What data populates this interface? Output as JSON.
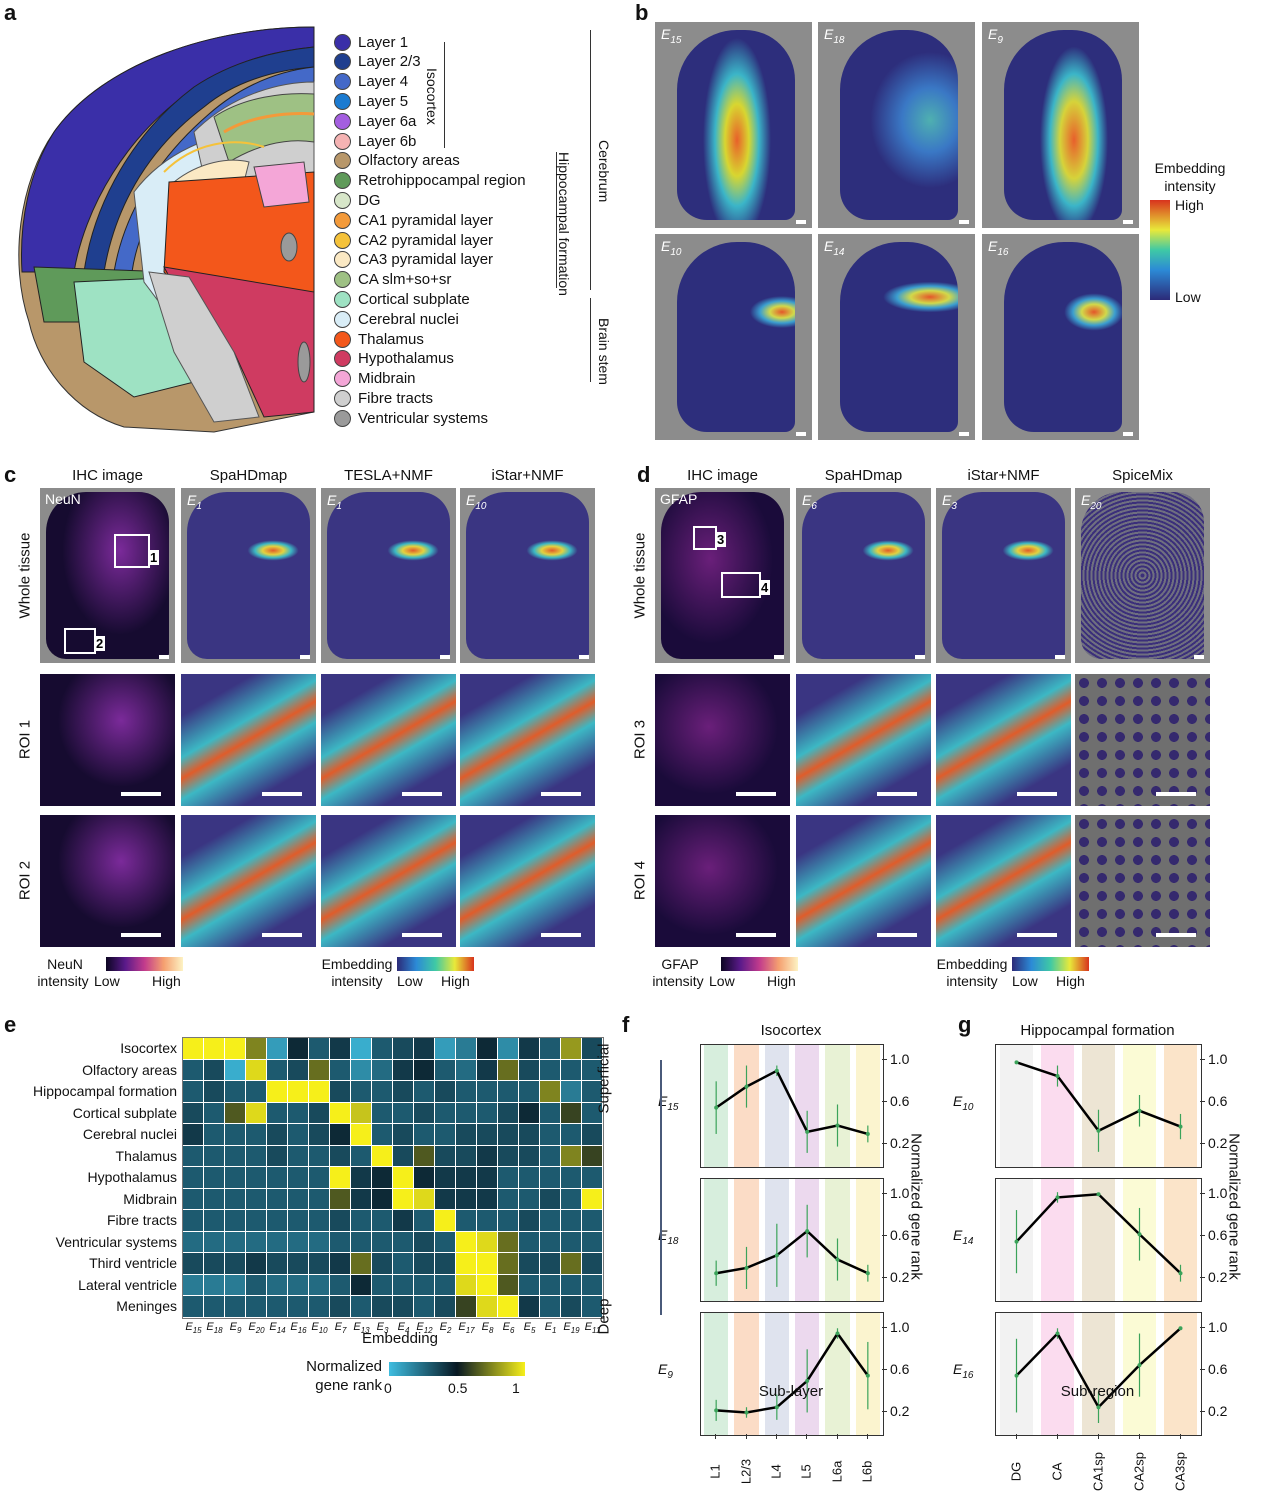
{
  "panel_labels": {
    "a": "a",
    "b": "b",
    "c": "c",
    "d": "d",
    "e": "e",
    "f": "f",
    "g": "g"
  },
  "panel_a": {
    "legend": [
      {
        "label": "Layer 1",
        "color": "#3a2fa8"
      },
      {
        "label": "Layer 2/3",
        "color": "#1f3f8f"
      },
      {
        "label": "Layer 4",
        "color": "#4469c8"
      },
      {
        "label": "Layer 5",
        "color": "#1b7bd1"
      },
      {
        "label": "Layer 6a",
        "color": "#a45ee0"
      },
      {
        "label": "Layer 6b",
        "color": "#f5b3b3"
      },
      {
        "label": "Olfactory areas",
        "color": "#b8976a"
      },
      {
        "label": "Retrohippocampal region",
        "color": "#5f9a5a"
      },
      {
        "label": "DG",
        "color": "#d7e6c9"
      },
      {
        "label": "CA1 pyramidal layer",
        "color": "#f39a3a"
      },
      {
        "label": "CA2 pyramidal layer",
        "color": "#f5c23a"
      },
      {
        "label": "CA3 pyramidal layer",
        "color": "#fbe9c4"
      },
      {
        "label": "CA slm+so+sr",
        "color": "#9ec184"
      },
      {
        "label": "Cortical subplate",
        "color": "#9ee2c3"
      },
      {
        "label": "Cerebral nuclei",
        "color": "#d9edf7"
      },
      {
        "label": "Thalamus",
        "color": "#f3571b"
      },
      {
        "label": "Hypothalamus",
        "color": "#cf3b61"
      },
      {
        "label": "Midbrain",
        "color": "#f4a6d7"
      },
      {
        "label": "Fibre tracts",
        "color": "#cfcfcf"
      },
      {
        "label": "Ventricular systems",
        "color": "#9a9a9a"
      }
    ],
    "brackets": {
      "isocortex": "Isocortex",
      "hippocampal": "Hippocampal formation",
      "cerebrum": "Cerebrum",
      "brainstem": "Brain stem"
    }
  },
  "panel_b": {
    "tiles": [
      {
        "name": "E",
        "sub": "15"
      },
      {
        "name": "E",
        "sub": "18"
      },
      {
        "name": "E",
        "sub": "9"
      },
      {
        "name": "E",
        "sub": "10"
      },
      {
        "name": "E",
        "sub": "14"
      },
      {
        "name": "E",
        "sub": "16"
      }
    ],
    "colorbar": {
      "title1": "Embedding",
      "title2": "intensity",
      "high": "High",
      "low": "Low"
    }
  },
  "panel_c": {
    "cols": [
      "IHC image",
      "SpaHDmap",
      "TESLA+NMF",
      "iStar+NMF"
    ],
    "rows": [
      "Whole tissue",
      "ROI 1",
      "ROI 2"
    ],
    "marker": "NeuN",
    "emb": [
      {
        "name": "E",
        "sub": "1"
      },
      {
        "name": "E",
        "sub": "1"
      },
      {
        "name": "E",
        "sub": "10"
      }
    ],
    "roi": [
      "1",
      "2"
    ],
    "cbar1": {
      "title1": "NeuN",
      "title2": "intensity",
      "low": "Low",
      "high": "High"
    },
    "cbar2": {
      "title1": "Embedding",
      "title2": "intensity",
      "low": "Low",
      "high": "High"
    }
  },
  "panel_d": {
    "cols": [
      "IHC image",
      "SpaHDmap",
      "iStar+NMF",
      "SpiceMix"
    ],
    "rows": [
      "Whole tissue",
      "ROI 3",
      "ROI 4"
    ],
    "marker": "GFAP",
    "emb": [
      {
        "name": "E",
        "sub": "6"
      },
      {
        "name": "E",
        "sub": "3"
      },
      {
        "name": "E",
        "sub": "20"
      }
    ],
    "roi": [
      "3",
      "4"
    ],
    "cbar1": {
      "title1": "GFAP",
      "title2": "intensity",
      "low": "Low",
      "high": "High"
    },
    "cbar2": {
      "title1": "Embedding",
      "title2": "intensity",
      "low": "Low",
      "high": "High"
    }
  },
  "chart_data": [
    {
      "type": "heatmap",
      "xlabel": "Embedding",
      "rows": [
        "Isocortex",
        "Olfactory areas",
        "Hippocampal formation",
        "Cortical subplate",
        "Cerebral nuclei",
        "Thalamus",
        "Hypothalamus",
        "Midbrain",
        "Fibre tracts",
        "Ventricular systems",
        "Third ventricle",
        "Lateral ventricle",
        "Meninges"
      ],
      "cols": [
        "15",
        "18",
        "9",
        "20",
        "14",
        "16",
        "10",
        "7",
        "13",
        "3",
        "4",
        "12",
        "2",
        "17",
        "8",
        "6",
        "5",
        "1",
        "19",
        "11"
      ],
      "col_prefix": "E",
      "values": [
        [
          1.0,
          1.0,
          1.0,
          0.75,
          0.1,
          0.45,
          0.3,
          0.4,
          0.05,
          0.3,
          0.35,
          0.4,
          0.1,
          0.2,
          0.45,
          0.15,
          0.4,
          0.3,
          0.8,
          0.35
        ],
        [
          0.3,
          0.35,
          0.05,
          0.95,
          0.3,
          0.35,
          0.7,
          0.3,
          0.15,
          0.25,
          0.4,
          0.45,
          0.3,
          0.25,
          0.4,
          0.7,
          0.35,
          0.3,
          0.3,
          0.3
        ],
        [
          0.3,
          0.35,
          0.3,
          0.3,
          1.0,
          1.0,
          1.0,
          0.35,
          0.3,
          0.3,
          0.35,
          0.3,
          0.35,
          0.3,
          0.3,
          0.3,
          0.3,
          0.75,
          0.2,
          0.3
        ],
        [
          0.35,
          0.3,
          0.65,
          0.95,
          0.3,
          0.3,
          0.35,
          1.0,
          0.9,
          0.3,
          0.3,
          0.35,
          0.3,
          0.3,
          0.3,
          0.35,
          0.45,
          0.3,
          0.6,
          0.3
        ],
        [
          0.4,
          0.3,
          0.3,
          0.3,
          0.35,
          0.3,
          0.35,
          0.45,
          1.0,
          0.3,
          0.35,
          0.3,
          0.3,
          0.35,
          0.35,
          0.35,
          0.35,
          0.3,
          0.3,
          0.35
        ],
        [
          0.3,
          0.3,
          0.3,
          0.3,
          0.35,
          0.3,
          0.3,
          0.35,
          0.3,
          1.0,
          0.35,
          0.65,
          0.35,
          0.35,
          0.4,
          0.35,
          0.35,
          0.3,
          0.75,
          0.6
        ],
        [
          0.3,
          0.3,
          0.3,
          0.3,
          0.3,
          0.3,
          0.3,
          1.0,
          0.4,
          0.45,
          1.0,
          0.45,
          0.4,
          0.4,
          0.4,
          0.3,
          0.3,
          0.3,
          0.3,
          0.3
        ],
        [
          0.3,
          0.3,
          0.3,
          0.3,
          0.3,
          0.3,
          0.3,
          0.65,
          0.4,
          0.45,
          1.0,
          0.95,
          0.4,
          0.4,
          0.4,
          0.3,
          0.3,
          0.35,
          0.3,
          1.0
        ],
        [
          0.3,
          0.3,
          0.3,
          0.3,
          0.3,
          0.3,
          0.3,
          0.35,
          0.3,
          0.3,
          0.4,
          0.3,
          1.0,
          0.3,
          0.3,
          0.3,
          0.35,
          0.3,
          0.3,
          0.3
        ],
        [
          0.25,
          0.25,
          0.25,
          0.25,
          0.25,
          0.25,
          0.25,
          0.3,
          0.3,
          0.3,
          0.3,
          0.35,
          0.3,
          1.0,
          0.95,
          0.7,
          0.3,
          0.3,
          0.3,
          0.3
        ],
        [
          0.35,
          0.35,
          0.35,
          0.4,
          0.35,
          0.35,
          0.35,
          0.4,
          0.7,
          0.35,
          0.3,
          0.35,
          0.35,
          1.0,
          1.0,
          0.7,
          0.35,
          0.35,
          0.7,
          0.35
        ],
        [
          0.2,
          0.2,
          0.2,
          0.3,
          0.25,
          0.25,
          0.25,
          0.3,
          0.45,
          0.3,
          0.3,
          0.3,
          0.3,
          0.95,
          1.0,
          0.65,
          0.3,
          0.3,
          0.3,
          0.3
        ],
        [
          0.3,
          0.3,
          0.3,
          0.3,
          0.3,
          0.3,
          0.3,
          0.35,
          0.3,
          0.35,
          0.35,
          0.3,
          0.35,
          0.6,
          0.95,
          1.0,
          0.4,
          0.3,
          0.35,
          0.3
        ]
      ],
      "colorbar": {
        "title1": "Normalized",
        "title2": "gene rank",
        "ticks": [
          "0",
          "0.5",
          "1"
        ]
      }
    },
    {
      "type": "line",
      "title": "Isocortex",
      "xlabel": "Sub-layer",
      "ylabel": "Normalized gene rank",
      "categories": [
        "L1",
        "L2/3",
        "L4",
        "L5",
        "L6a",
        "L6b"
      ],
      "band_colors": [
        "#d7eedd",
        "#fbdcc6",
        "#dfe3ee",
        "#ecd9ee",
        "#e8f2d5",
        "#fbf4cf"
      ],
      "yticks": [
        "1.0",
        "0.6",
        "0.2"
      ],
      "arrow_top": "Superficial",
      "arrow_bottom": "Deep",
      "series": [
        {
          "name": "E",
          "sub": "15",
          "values": [
            0.55,
            0.75,
            0.9,
            0.32,
            0.38,
            0.3
          ],
          "err": [
            0.25,
            0.2,
            0.05,
            0.2,
            0.2,
            0.08
          ]
        },
        {
          "name": "E",
          "sub": "18",
          "values": [
            0.25,
            0.3,
            0.42,
            0.65,
            0.38,
            0.25
          ],
          "err": [
            0.12,
            0.2,
            0.3,
            0.25,
            0.2,
            0.08
          ]
        },
        {
          "name": "E",
          "sub": "9",
          "values": [
            0.22,
            0.2,
            0.25,
            0.5,
            0.95,
            0.55
          ],
          "err": [
            0.1,
            0.05,
            0.12,
            0.3,
            0.05,
            0.32
          ]
        }
      ]
    },
    {
      "type": "line",
      "title": "Hippocampal formation",
      "xlabel": "Sub-region",
      "ylabel": "Normalized gene rank",
      "categories": [
        "DG",
        "CA",
        "CA1sp",
        "CA2sp",
        "CA3sp"
      ],
      "band_colors": [
        "#f2f2f2",
        "#fbdcef",
        "#ede5d4",
        "#fbfbd5",
        "#fbe4c9"
      ],
      "yticks": [
        "1.0",
        "0.6",
        "0.2"
      ],
      "series": [
        {
          "name": "E",
          "sub": "10",
          "values": [
            0.98,
            0.85,
            0.33,
            0.52,
            0.37
          ],
          "err": [
            0.0,
            0.1,
            0.2,
            0.15,
            0.12
          ]
        },
        {
          "name": "E",
          "sub": "14",
          "values": [
            0.55,
            0.97,
            1.0,
            0.62,
            0.25
          ],
          "err": [
            0.3,
            0.05,
            0.0,
            0.25,
            0.08
          ]
        },
        {
          "name": "E",
          "sub": "16",
          "values": [
            0.55,
            0.95,
            0.25,
            0.65,
            1.0
          ],
          "err": [
            0.35,
            0.05,
            0.15,
            0.3,
            0.0
          ]
        }
      ]
    }
  ]
}
